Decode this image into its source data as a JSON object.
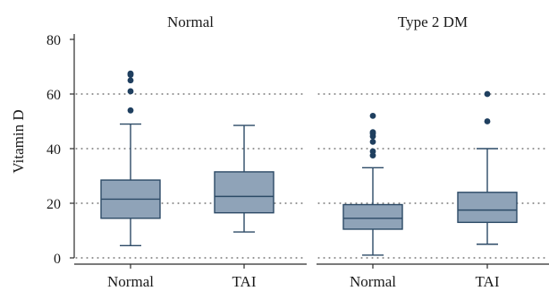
{
  "chart_data": {
    "type": "boxplot",
    "ylabel": "Vitamin D",
    "ylim": [
      0,
      80
    ],
    "yticks": [
      0,
      20,
      40,
      60,
      80
    ],
    "grid": true,
    "colors": {
      "box_fill": "#8fa3b8",
      "box_stroke": "#2c4a66",
      "outlier": "#1f3f5f"
    },
    "panels": [
      {
        "title": "Normal",
        "groups": [
          {
            "label": "Normal",
            "whisker_low": 4.5,
            "q1": 14.5,
            "median": 21.5,
            "q3": 28.5,
            "whisker_high": 49,
            "outliers": [
              54,
              61,
              65,
              67,
              67.5
            ]
          },
          {
            "label": "TAI",
            "whisker_low": 9.5,
            "q1": 16.5,
            "median": 22.5,
            "q3": 31.5,
            "whisker_high": 48.5,
            "outliers": []
          }
        ]
      },
      {
        "title": "Type 2 DM",
        "groups": [
          {
            "label": "Normal",
            "whisker_low": 1,
            "q1": 10.5,
            "median": 14.5,
            "q3": 19.5,
            "whisker_high": 33,
            "outliers": [
              37.5,
              39,
              42.5,
              44.5,
              45.5,
              46,
              52
            ]
          },
          {
            "label": "TAI",
            "whisker_low": 5,
            "q1": 13,
            "median": 17.5,
            "q3": 24,
            "whisker_high": 40,
            "outliers": [
              50,
              60
            ]
          }
        ]
      }
    ]
  }
}
